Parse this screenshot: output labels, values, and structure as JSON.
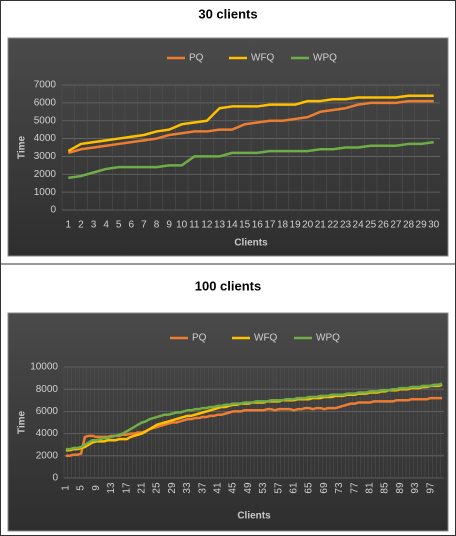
{
  "chart_data": [
    {
      "type": "line",
      "title": "30 clients",
      "x_label": "Clients",
      "y_label": "Time",
      "legend": "top",
      "grid": true,
      "categories": [
        1,
        2,
        3,
        4,
        5,
        6,
        7,
        8,
        9,
        10,
        11,
        12,
        13,
        14,
        15,
        16,
        17,
        18,
        19,
        20,
        21,
        22,
        23,
        24,
        25,
        26,
        27,
        28,
        29,
        30
      ],
      "ylim": [
        0,
        7000
      ],
      "yticks": [
        0,
        1000,
        2000,
        3000,
        4000,
        5000,
        6000,
        7000
      ],
      "series": [
        {
          "name": "PQ",
          "color": "#ed7d31",
          "values": [
            3200,
            3400,
            3500,
            3600,
            3700,
            3800,
            3900,
            4000,
            4200,
            4300,
            4400,
            4400,
            4500,
            4500,
            4800,
            4900,
            5000,
            5000,
            5100,
            5200,
            5500,
            5600,
            5700,
            5900,
            6000,
            6000,
            6000,
            6100,
            6100,
            6100
          ]
        },
        {
          "name": "WFQ",
          "color": "#ffc000",
          "values": [
            3300,
            3700,
            3800,
            3900,
            4000,
            4100,
            4200,
            4400,
            4500,
            4800,
            4900,
            5000,
            5700,
            5800,
            5800,
            5800,
            5900,
            5900,
            5900,
            6100,
            6100,
            6200,
            6200,
            6300,
            6300,
            6300,
            6300,
            6400,
            6400,
            6400
          ]
        },
        {
          "name": "WPQ",
          "color": "#70ad47",
          "values": [
            1800,
            1900,
            2100,
            2300,
            2400,
            2400,
            2400,
            2400,
            2500,
            2500,
            3000,
            3000,
            3000,
            3200,
            3200,
            3200,
            3300,
            3300,
            3300,
            3300,
            3400,
            3400,
            3500,
            3500,
            3600,
            3600,
            3600,
            3700,
            3700,
            3800
          ]
        }
      ]
    },
    {
      "type": "line",
      "title": "100 clients",
      "x_label": "Clients",
      "y_label": "Time",
      "legend": "top",
      "grid": true,
      "categories": [
        1,
        null,
        null,
        null,
        5,
        null,
        null,
        null,
        9,
        null,
        null,
        null,
        13,
        null,
        null,
        null,
        17,
        null,
        null,
        null,
        21,
        null,
        null,
        null,
        25,
        null,
        null,
        null,
        29,
        null,
        null,
        null,
        33,
        null,
        null,
        null,
        37,
        null,
        null,
        null,
        41,
        null,
        null,
        null,
        45,
        null,
        null,
        null,
        49,
        null,
        null,
        null,
        53,
        null,
        null,
        null,
        57,
        null,
        null,
        null,
        61,
        null,
        null,
        null,
        65,
        null,
        null,
        null,
        69,
        null,
        null,
        null,
        73,
        null,
        null,
        null,
        77,
        null,
        null,
        null,
        81,
        null,
        null,
        null,
        85,
        null,
        null,
        null,
        89,
        null,
        null,
        null,
        93,
        null,
        null,
        null,
        97,
        null,
        null,
        null
      ],
      "ylim": [
        0,
        10000
      ],
      "yticks": [
        0,
        2000,
        4000,
        6000,
        8000,
        10000
      ],
      "series": [
        {
          "name": "PQ",
          "color": "#ed7d31",
          "values": [
            2000,
            2000,
            2100,
            2100,
            2200,
            3700,
            3800,
            3800,
            3700,
            3700,
            3700,
            3700,
            3800,
            3800,
            3800,
            3900,
            3900,
            4000,
            4000,
            4100,
            4100,
            4200,
            4400,
            4500,
            4600,
            4700,
            4800,
            4900,
            5000,
            5000,
            5100,
            5200,
            5300,
            5300,
            5400,
            5400,
            5500,
            5500,
            5600,
            5600,
            5700,
            5700,
            5800,
            5900,
            6000,
            6000,
            6000,
            6100,
            6100,
            6100,
            6100,
            6100,
            6100,
            6200,
            6200,
            6100,
            6200,
            6200,
            6200,
            6200,
            6100,
            6200,
            6200,
            6300,
            6300,
            6200,
            6300,
            6300,
            6200,
            6300,
            6300,
            6300,
            6400,
            6500,
            6600,
            6700,
            6700,
            6800,
            6800,
            6800,
            6800,
            6900,
            6900,
            6900,
            6900,
            6900,
            6900,
            7000,
            7000,
            7000,
            7000,
            7100,
            7100,
            7100,
            7100,
            7100,
            7200,
            7200,
            7200,
            7200
          ]
        },
        {
          "name": "WFQ",
          "color": "#ffc000",
          "values": [
            2500,
            2500,
            2600,
            2600,
            2700,
            2800,
            3000,
            3200,
            3300,
            3300,
            3300,
            3400,
            3400,
            3400,
            3500,
            3500,
            3500,
            3700,
            3800,
            3900,
            4000,
            4200,
            4400,
            4600,
            4800,
            4900,
            5000,
            5100,
            5200,
            5300,
            5400,
            5500,
            5600,
            5600,
            5700,
            5800,
            5900,
            6000,
            6100,
            6200,
            6300,
            6400,
            6400,
            6500,
            6600,
            6600,
            6700,
            6700,
            6700,
            6800,
            6800,
            6800,
            6800,
            6900,
            6900,
            6900,
            6900,
            7000,
            7000,
            7000,
            7000,
            7100,
            7100,
            7100,
            7100,
            7200,
            7200,
            7200,
            7300,
            7300,
            7300,
            7400,
            7400,
            7400,
            7500,
            7500,
            7500,
            7600,
            7600,
            7600,
            7700,
            7700,
            7700,
            7800,
            7800,
            7900,
            7900,
            7900,
            8000,
            8000,
            8000,
            8100,
            8100,
            8100,
            8200,
            8200,
            8300,
            8300,
            8300,
            8400
          ]
        },
        {
          "name": "WPQ",
          "color": "#70ad47",
          "values": [
            2600,
            2600,
            2700,
            2700,
            2800,
            3000,
            3200,
            3400,
            3400,
            3500,
            3600,
            3600,
            3700,
            3800,
            3900,
            4000,
            4200,
            4400,
            4600,
            4800,
            5000,
            5100,
            5300,
            5400,
            5500,
            5600,
            5700,
            5700,
            5800,
            5900,
            5900,
            6000,
            6100,
            6100,
            6200,
            6200,
            6300,
            6300,
            6400,
            6400,
            6500,
            6500,
            6600,
            6600,
            6700,
            6700,
            6700,
            6800,
            6800,
            6800,
            6900,
            6900,
            6900,
            6900,
            7000,
            7000,
            7000,
            7000,
            7100,
            7100,
            7100,
            7200,
            7200,
            7200,
            7300,
            7300,
            7300,
            7400,
            7400,
            7400,
            7500,
            7500,
            7500,
            7500,
            7600,
            7600,
            7600,
            7700,
            7700,
            7700,
            7800,
            7800,
            7800,
            7900,
            7900,
            7900,
            8000,
            8000,
            8100,
            8100,
            8100,
            8200,
            8200,
            8200,
            8300,
            8300,
            8300,
            8400,
            8400,
            8500
          ]
        }
      ]
    }
  ]
}
